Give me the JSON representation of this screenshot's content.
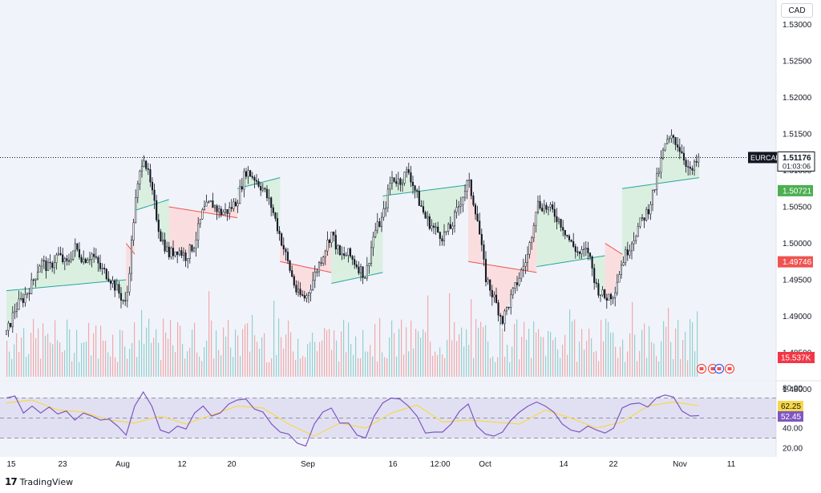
{
  "currency_label": "CAD",
  "attribution": "TradingView",
  "colors": {
    "up": "#26a69a",
    "down": "#ef5350",
    "candle": "#131722",
    "rsi": "#7e57c2",
    "rsi_ma": "#f7d84a",
    "up_fill": "#d4eeda",
    "down_fill": "#fcd8d8",
    "price_tag_bg": "#131722",
    "up_tag": "#4caf50",
    "down_tag": "#ef5350",
    "vol_tag": "#f23645"
  },
  "chart_data": {
    "type": "candlestick",
    "symbol": "EURCAD",
    "price_axis": {
      "ticks": [
        "1.53000",
        "1.52500",
        "1.52000",
        "1.51500",
        "1.51000",
        "1.50500",
        "1.50000",
        "1.49500",
        "1.49000",
        "1.48500",
        "1.48000"
      ],
      "range": [
        1.478,
        1.531
      ]
    },
    "x_axis_ticks": [
      "15",
      "23",
      "Aug",
      "12",
      "20",
      "Sep",
      "16",
      "12:00",
      "Oct",
      "14",
      "22",
      "Nov",
      "11"
    ],
    "price_path": [
      [
        0,
        1.4875
      ],
      [
        1,
        1.491
      ],
      [
        2,
        1.4925
      ],
      [
        3,
        1.4945
      ],
      [
        4,
        1.4975
      ],
      [
        5,
        1.4965
      ],
      [
        6,
        1.4985
      ],
      [
        7,
        1.497
      ],
      [
        8,
        1.4995
      ],
      [
        9,
        1.4978
      ],
      [
        10,
        1.4985
      ],
      [
        11,
        1.4965
      ],
      [
        12,
        1.4955
      ],
      [
        13,
        1.4935
      ],
      [
        14,
        1.4915
      ],
      [
        15,
        1.505
      ],
      [
        16,
        1.5125
      ],
      [
        17,
        1.507
      ],
      [
        18,
        1.501
      ],
      [
        19,
        1.4985
      ],
      [
        20,
        1.4992
      ],
      [
        21,
        1.4982
      ],
      [
        22,
        1.5
      ],
      [
        23,
        1.5045
      ],
      [
        24,
        1.5055
      ],
      [
        25,
        1.5042
      ],
      [
        26,
        1.5045
      ],
      [
        27,
        1.506
      ],
      [
        28,
        1.51
      ],
      [
        29,
        1.509
      ],
      [
        30,
        1.5075
      ],
      [
        31,
        1.505
      ],
      [
        32,
        1.501
      ],
      [
        33,
        1.497
      ],
      [
        34,
        1.493
      ],
      [
        35,
        1.4925
      ],
      [
        36,
        1.4955
      ],
      [
        37,
        1.4985
      ],
      [
        38,
        1.5015
      ],
      [
        39,
        1.4982
      ],
      [
        40,
        1.4985
      ],
      [
        41,
        1.497
      ],
      [
        42,
        1.4955
      ],
      [
        43,
        1.5015
      ],
      [
        44,
        1.5035
      ],
      [
        45,
        1.509
      ],
      [
        46,
        1.5085
      ],
      [
        47,
        1.51
      ],
      [
        48,
        1.5065
      ],
      [
        49,
        1.5035
      ],
      [
        50,
        1.502
      ],
      [
        51,
        1.501
      ],
      [
        52,
        1.5022
      ],
      [
        53,
        1.5055
      ],
      [
        54,
        1.5085
      ],
      [
        55,
        1.504
      ],
      [
        56,
        1.4955
      ],
      [
        57,
        1.4925
      ],
      [
        58,
        1.4895
      ],
      [
        59,
        1.4925
      ],
      [
        60,
        1.4955
      ],
      [
        61,
        1.4985
      ],
      [
        62,
        1.5055
      ],
      [
        63,
        1.505
      ],
      [
        64,
        1.5042
      ],
      [
        65,
        1.5025
      ],
      [
        66,
        1.5
      ],
      [
        67,
        1.4985
      ],
      [
        68,
        1.499
      ],
      [
        69,
        1.494
      ],
      [
        70,
        1.4925
      ],
      [
        71,
        1.4932
      ],
      [
        72,
        1.4975
      ],
      [
        73,
        1.5
      ],
      [
        74,
        1.5025
      ],
      [
        75,
        1.5045
      ],
      [
        76,
        1.5085
      ],
      [
        77,
        1.5135
      ],
      [
        78,
        1.5145
      ],
      [
        79,
        1.5125
      ],
      [
        80,
        1.5095
      ],
      [
        81,
        1.5118
      ]
    ],
    "volume": {
      "last_label": "15.537K"
    },
    "supertrend": [
      {
        "dir": "up",
        "start": 0,
        "end": 14,
        "level": 1.4935
      },
      {
        "dir": "down",
        "start": 14,
        "end": 15,
        "level": 1.5
      },
      {
        "dir": "up",
        "start": 15,
        "end": 19,
        "level": 1.5045
      },
      {
        "dir": "down",
        "start": 19,
        "end": 27,
        "level": 1.505
      },
      {
        "dir": "up",
        "start": 27,
        "end": 32,
        "level": 1.5075
      },
      {
        "dir": "down",
        "start": 32,
        "end": 38,
        "level": 1.4975
      },
      {
        "dir": "up",
        "start": 38,
        "end": 44,
        "level": 1.4945
      },
      {
        "dir": "up",
        "start": 44,
        "end": 54,
        "level": 1.5065
      },
      {
        "dir": "down",
        "start": 54,
        "end": 62,
        "level": 1.4975
      },
      {
        "dir": "up",
        "start": 62,
        "end": 70,
        "level": 1.4968
      },
      {
        "dir": "down",
        "start": 70,
        "end": 72,
        "level": 1.5
      },
      {
        "dir": "up",
        "start": 72,
        "end": 81,
        "level": 1.5075
      }
    ],
    "tags": {
      "price": "1.51176",
      "countdown": "01:03:06",
      "up_level": "1.50721",
      "down_level": "1.49746"
    },
    "rsi": {
      "ticks": [
        "80.00",
        "40.00",
        "20.00"
      ],
      "range": [
        15,
        85
      ],
      "band": [
        30,
        70
      ],
      "value": "52.45",
      "ma_value": "62.25",
      "path": [
        [
          0,
          70
        ],
        [
          1,
          72
        ],
        [
          2,
          55
        ],
        [
          3,
          62
        ],
        [
          4,
          55
        ],
        [
          5,
          61
        ],
        [
          6,
          54
        ],
        [
          7,
          57
        ],
        [
          8,
          48
        ],
        [
          9,
          55
        ],
        [
          10,
          52
        ],
        [
          11,
          48
        ],
        [
          12,
          49
        ],
        [
          13,
          42
        ],
        [
          14,
          33
        ],
        [
          15,
          62
        ],
        [
          16,
          76
        ],
        [
          17,
          62
        ],
        [
          18,
          38
        ],
        [
          19,
          35
        ],
        [
          20,
          42
        ],
        [
          21,
          39
        ],
        [
          22,
          55
        ],
        [
          23,
          62
        ],
        [
          24,
          52
        ],
        [
          25,
          55
        ],
        [
          26,
          64
        ],
        [
          27,
          68
        ],
        [
          28,
          69
        ],
        [
          29,
          59
        ],
        [
          30,
          56
        ],
        [
          31,
          44
        ],
        [
          32,
          36
        ],
        [
          33,
          34
        ],
        [
          34,
          25
        ],
        [
          35,
          22
        ],
        [
          36,
          44
        ],
        [
          37,
          56
        ],
        [
          38,
          60
        ],
        [
          39,
          45
        ],
        [
          40,
          45
        ],
        [
          41,
          33
        ],
        [
          42,
          30
        ],
        [
          43,
          52
        ],
        [
          44,
          65
        ],
        [
          45,
          70
        ],
        [
          46,
          69
        ],
        [
          47,
          62
        ],
        [
          48,
          52
        ],
        [
          49,
          35
        ],
        [
          50,
          36
        ],
        [
          51,
          36
        ],
        [
          52,
          44
        ],
        [
          53,
          57
        ],
        [
          54,
          64
        ],
        [
          55,
          42
        ],
        [
          56,
          34
        ],
        [
          57,
          32
        ],
        [
          58,
          36
        ],
        [
          59,
          48
        ],
        [
          60,
          56
        ],
        [
          61,
          62
        ],
        [
          62,
          66
        ],
        [
          63,
          62
        ],
        [
          64,
          56
        ],
        [
          65,
          44
        ],
        [
          66,
          38
        ],
        [
          67,
          36
        ],
        [
          68,
          42
        ],
        [
          69,
          38
        ],
        [
          70,
          35
        ],
        [
          71,
          40
        ],
        [
          72,
          60
        ],
        [
          73,
          64
        ],
        [
          74,
          65
        ],
        [
          75,
          61
        ],
        [
          76,
          70
        ],
        [
          77,
          73
        ],
        [
          78,
          71
        ],
        [
          79,
          57
        ],
        [
          80,
          52
        ],
        [
          81,
          52.45
        ]
      ],
      "ma_path": [
        [
          0,
          65
        ],
        [
          3,
          68
        ],
        [
          6,
          58
        ],
        [
          9,
          56
        ],
        [
          12,
          48
        ],
        [
          15,
          45
        ],
        [
          18,
          52
        ],
        [
          21,
          44
        ],
        [
          24,
          53
        ],
        [
          27,
          62
        ],
        [
          30,
          60
        ],
        [
          33,
          44
        ],
        [
          36,
          32
        ],
        [
          39,
          45
        ],
        [
          42,
          40
        ],
        [
          45,
          55
        ],
        [
          48,
          63
        ],
        [
          51,
          46
        ],
        [
          54,
          48
        ],
        [
          57,
          46
        ],
        [
          60,
          44
        ],
        [
          63,
          58
        ],
        [
          66,
          50
        ],
        [
          69,
          40
        ],
        [
          72,
          46
        ],
        [
          75,
          62
        ],
        [
          78,
          66
        ],
        [
          81,
          62.25
        ]
      ]
    }
  }
}
